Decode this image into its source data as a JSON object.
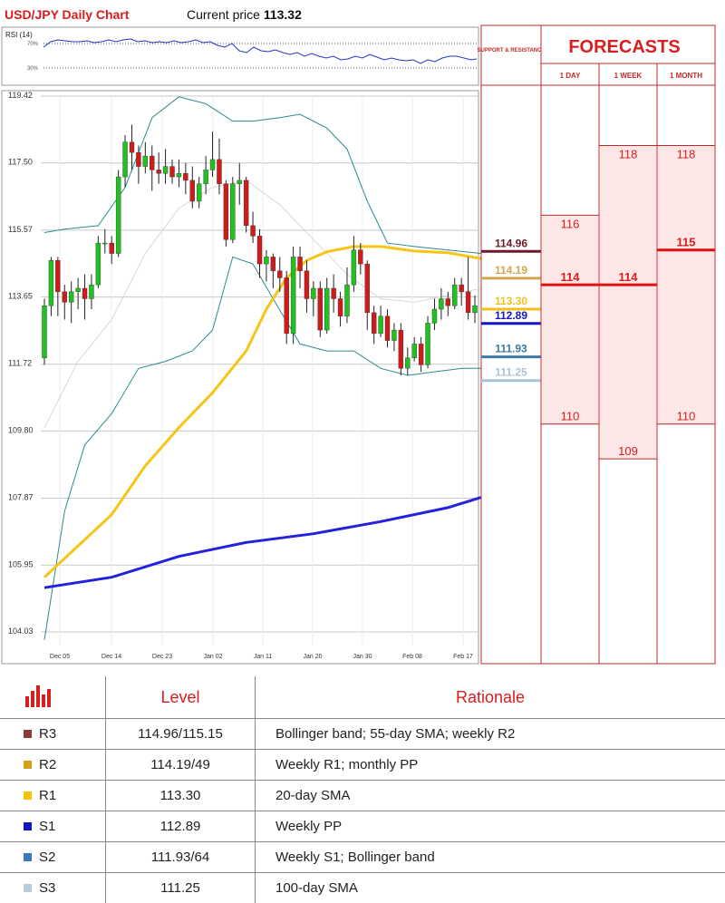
{
  "header": {
    "title": "USD/JPY Daily Chart",
    "price_prefix": "Current price",
    "price_value": "113.32"
  },
  "rsi": {
    "label": "RSI (14)",
    "upper": "70%",
    "lower": "30%"
  },
  "chart_data": {
    "type": "candlestick",
    "y_ticks": [
      "119.42",
      "117.50",
      "115.57",
      "113.65",
      "111.72",
      "109.80",
      "107.87",
      "105.95",
      "104.03"
    ],
    "ylim": [
      104.03,
      119.42
    ],
    "x_ticks": [
      "Dec 05",
      "Dec 14",
      "Dec 23",
      "Jan 02",
      "Jan 11",
      "Jan 20",
      "Jan 30",
      "Feb 08",
      "Feb 17"
    ],
    "colors": {
      "up": "#1fc21f",
      "down": "#d11a1a",
      "sma20": "#f5c518",
      "sma100": "#2222dd",
      "bollinger": "#2a8c8c",
      "sma55": "#d8d8d8"
    },
    "candles": [
      [
        111.9,
        113.4,
        113.6,
        111.7
      ],
      [
        113.4,
        114.7,
        114.8,
        113.1
      ],
      [
        114.7,
        113.8,
        114.8,
        113.1
      ],
      [
        113.8,
        113.5,
        114.0,
        113.0
      ],
      [
        113.5,
        113.8,
        114.1,
        112.9
      ],
      [
        113.8,
        113.9,
        114.2,
        113.3
      ],
      [
        113.9,
        113.6,
        114.3,
        113.0
      ],
      [
        113.6,
        114.0,
        114.3,
        113.3
      ],
      [
        114.0,
        115.2,
        115.4,
        113.9
      ],
      [
        115.2,
        115.2,
        115.6,
        114.9
      ],
      [
        115.2,
        114.9,
        115.4,
        114.6
      ],
      [
        114.9,
        117.1,
        117.3,
        114.8
      ],
      [
        117.1,
        118.1,
        118.3,
        116.8
      ],
      [
        118.1,
        117.8,
        118.6,
        117.3
      ],
      [
        117.8,
        117.4,
        118.0,
        116.9
      ],
      [
        117.4,
        117.7,
        118.1,
        117.2
      ],
      [
        117.7,
        117.3,
        118.0,
        116.7
      ],
      [
        117.3,
        117.2,
        117.8,
        116.9
      ],
      [
        117.2,
        117.4,
        117.9,
        116.9
      ],
      [
        117.4,
        117.1,
        117.6,
        116.9
      ],
      [
        117.1,
        117.2,
        117.6,
        116.8
      ],
      [
        117.2,
        117.0,
        117.5,
        116.6
      ],
      [
        117.0,
        116.4,
        117.4,
        116.2
      ],
      [
        116.4,
        116.9,
        117.1,
        116.2
      ],
      [
        116.9,
        117.3,
        117.7,
        116.6
      ],
      [
        117.3,
        117.6,
        118.4,
        117.1
      ],
      [
        117.6,
        116.9,
        118.2,
        116.6
      ],
      [
        116.9,
        115.3,
        117.0,
        115.1
      ],
      [
        115.3,
        116.9,
        117.1,
        115.2
      ],
      [
        116.9,
        117.0,
        117.5,
        116.3
      ],
      [
        117.0,
        115.7,
        117.1,
        115.5
      ],
      [
        115.7,
        115.4,
        116.1,
        115.2
      ],
      [
        115.4,
        114.6,
        115.6,
        114.2
      ],
      [
        114.6,
        114.8,
        115.0,
        114.1
      ],
      [
        114.8,
        114.4,
        114.9,
        113.9
      ],
      [
        114.4,
        114.2,
        114.8,
        113.8
      ],
      [
        114.2,
        112.6,
        114.4,
        112.3
      ],
      [
        112.6,
        114.8,
        115.1,
        112.3
      ],
      [
        114.8,
        114.4,
        115.1,
        113.9
      ],
      [
        114.4,
        113.6,
        114.7,
        113.2
      ],
      [
        113.6,
        113.9,
        114.1,
        113.1
      ],
      [
        113.9,
        112.7,
        114.1,
        112.5
      ],
      [
        112.7,
        113.9,
        114.2,
        112.6
      ],
      [
        113.9,
        113.6,
        114.3,
        113.2
      ],
      [
        113.6,
        113.1,
        113.8,
        112.8
      ],
      [
        113.1,
        114.0,
        114.5,
        112.9
      ],
      [
        114.0,
        115.0,
        115.4,
        113.8
      ],
      [
        115.0,
        114.6,
        115.2,
        114.3
      ],
      [
        114.6,
        113.2,
        114.7,
        112.7
      ],
      [
        113.2,
        112.6,
        113.4,
        112.3
      ],
      [
        112.6,
        113.1,
        113.4,
        112.5
      ],
      [
        113.1,
        112.4,
        113.3,
        112.2
      ],
      [
        112.4,
        112.7,
        112.9,
        112.1
      ],
      [
        112.7,
        111.6,
        112.9,
        111.4
      ],
      [
        111.6,
        111.9,
        112.2,
        111.4
      ],
      [
        111.9,
        112.3,
        112.5,
        111.8
      ],
      [
        112.3,
        111.7,
        112.5,
        111.5
      ],
      [
        111.7,
        112.9,
        113.1,
        111.6
      ],
      [
        112.9,
        113.3,
        113.6,
        112.7
      ],
      [
        113.3,
        113.6,
        113.9,
        113.0
      ],
      [
        113.6,
        113.4,
        113.8,
        113.1
      ],
      [
        113.4,
        114.0,
        114.2,
        113.3
      ],
      [
        114.0,
        113.8,
        114.2,
        113.4
      ],
      [
        113.8,
        113.2,
        114.8,
        113.0
      ],
      [
        113.2,
        113.4,
        113.7,
        112.9
      ]
    ],
    "sma100": [
      [
        0,
        105.3
      ],
      [
        10,
        105.6
      ],
      [
        20,
        106.2
      ],
      [
        30,
        106.6
      ],
      [
        40,
        106.85
      ],
      [
        50,
        107.2
      ],
      [
        60,
        107.6
      ],
      [
        65,
        107.9
      ]
    ],
    "sma20": [
      [
        0,
        105.6
      ],
      [
        5,
        106.5
      ],
      [
        10,
        107.4
      ],
      [
        15,
        108.8
      ],
      [
        20,
        109.9
      ],
      [
        25,
        110.9
      ],
      [
        30,
        112.1
      ],
      [
        33,
        113.3
      ],
      [
        36,
        114.2
      ],
      [
        39,
        114.7
      ],
      [
        42,
        114.95
      ],
      [
        46,
        115.1
      ],
      [
        50,
        115.1
      ],
      [
        55,
        114.97
      ],
      [
        60,
        114.92
      ],
      [
        65,
        114.75
      ]
    ],
    "sma55": [
      [
        0,
        109.9
      ],
      [
        5,
        111.8
      ],
      [
        10,
        113.0
      ],
      [
        15,
        114.9
      ],
      [
        20,
        116.2
      ],
      [
        25,
        116.8
      ],
      [
        30,
        117.0
      ],
      [
        35,
        116.3
      ],
      [
        40,
        115.3
      ],
      [
        45,
        114.3
      ],
      [
        50,
        113.6
      ],
      [
        55,
        113.5
      ],
      [
        60,
        113.7
      ],
      [
        65,
        113.9
      ]
    ],
    "boll_upper": [
      [
        0,
        115.5
      ],
      [
        3,
        115.6
      ],
      [
        8,
        115.7
      ],
      [
        12,
        116.8
      ],
      [
        16,
        118.8
      ],
      [
        20,
        119.4
      ],
      [
        24,
        119.2
      ],
      [
        28,
        118.7
      ],
      [
        31,
        118.7
      ],
      [
        35,
        118.8
      ],
      [
        38,
        118.9
      ],
      [
        42,
        118.5
      ],
      [
        45,
        117.9
      ],
      [
        48,
        116.4
      ],
      [
        51,
        115.2
      ],
      [
        55,
        115.1
      ],
      [
        60,
        115.0
      ],
      [
        65,
        114.9
      ]
    ],
    "boll_lower": [
      [
        0,
        103.8
      ],
      [
        3,
        107.5
      ],
      [
        6,
        109.4
      ],
      [
        10,
        110.3
      ],
      [
        14,
        111.6
      ],
      [
        18,
        111.8
      ],
      [
        22,
        112.1
      ],
      [
        25,
        112.7
      ],
      [
        28,
        114.8
      ],
      [
        31,
        114.6
      ],
      [
        34,
        113.6
      ],
      [
        38,
        112.3
      ],
      [
        42,
        112.1
      ],
      [
        46,
        112.1
      ],
      [
        50,
        111.6
      ],
      [
        54,
        111.4
      ],
      [
        58,
        111.5
      ],
      [
        62,
        111.6
      ],
      [
        65,
        111.6
      ]
    ]
  },
  "sr_panel": {
    "title": "SUPPORT & RESISTANCE",
    "levels": [
      {
        "value": "114.96",
        "price": 114.96,
        "color": "#6b1a2a"
      },
      {
        "value": "114.19",
        "price": 114.19,
        "color": "#d4a54a"
      },
      {
        "value": "113.30",
        "price": 113.3,
        "color": "#f0c020"
      },
      {
        "value": "112.89",
        "price": 112.89,
        "color": "#1515c8"
      },
      {
        "value": "111.93",
        "price": 111.93,
        "color": "#3a7aa8"
      },
      {
        "value": "111.25",
        "price": 111.25,
        "color": "#a9c4da"
      }
    ]
  },
  "forecasts": {
    "title": "FORECASTS",
    "columns": [
      {
        "header": "1 DAY",
        "high": 116,
        "mid": 114,
        "low": 110
      },
      {
        "header": "1 WEEK",
        "high": 118,
        "mid": 114,
        "low": 109
      },
      {
        "header": "1 MONTH",
        "high": 118,
        "mid": 115,
        "low": 110
      }
    ]
  },
  "levels_table": {
    "col_level": "Level",
    "col_rationale": "Rationale",
    "rows": [
      {
        "tag": "R3",
        "color": "#8b3a3a",
        "level": "114.96/115.15",
        "rationale": "Bollinger band; 55-day SMA; weekly R2"
      },
      {
        "tag": "R2",
        "color": "#d4a017",
        "level": "114.19/49",
        "rationale": "Weekly R1; monthly PP"
      },
      {
        "tag": "R1",
        "color": "#f5c400",
        "level": "113.30",
        "rationale": "20-day SMA"
      },
      {
        "tag": "S1",
        "color": "#1515c8",
        "level": "112.89",
        "rationale": "Weekly PP"
      },
      {
        "tag": "S2",
        "color": "#3a7ab8",
        "level": "111.93/64",
        "rationale": "Weekly S1; Bollinger band"
      },
      {
        "tag": "S3",
        "color": "#b8cce0",
        "level": "111.25",
        "rationale": "100-day SMA"
      }
    ]
  }
}
